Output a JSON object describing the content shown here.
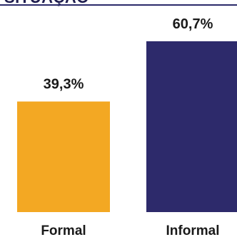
{
  "header": {
    "title": "SITUAÇÃO"
  },
  "colors": {
    "rule": "#2b2a6a",
    "formal": "#f3a823",
    "informal": "#2d2a6b"
  },
  "chart_data": {
    "type": "bar",
    "categories": [
      "Formal",
      "Informal"
    ],
    "values": [
      39.3,
      60.7
    ],
    "value_labels": [
      "39,3%",
      "60,7%"
    ],
    "colors": [
      "#f3a823",
      "#2d2a6b"
    ],
    "title": "",
    "xlabel": "",
    "ylabel": "",
    "ylim": [
      0,
      60.7
    ],
    "grid": false,
    "legend": "none"
  }
}
